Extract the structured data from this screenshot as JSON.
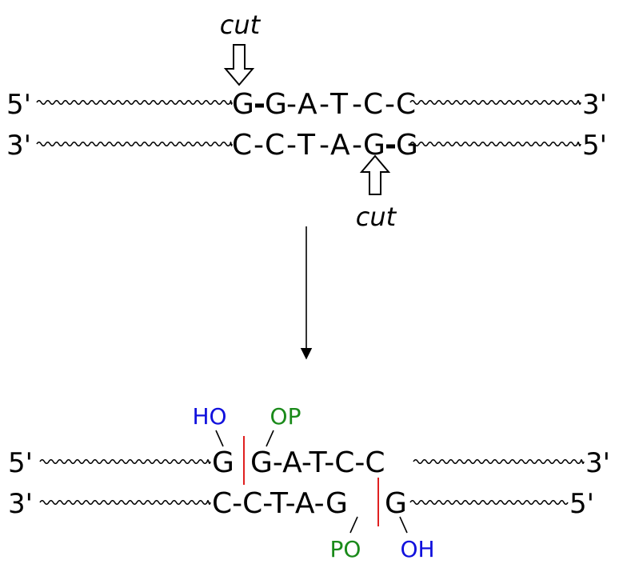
{
  "top": {
    "cut_label_top": "cut",
    "cut_label_bottom": "cut",
    "strand1": {
      "left_end": "5'",
      "right_end": "3'",
      "bases": [
        "G",
        "-",
        "G",
        "-",
        "A",
        "-",
        "T",
        "-",
        "C",
        "-",
        "C"
      ]
    },
    "strand2": {
      "left_end": "3'",
      "right_end": "5'",
      "bases": [
        "C",
        "-",
        "C",
        "-",
        "T",
        "-",
        "A",
        "-",
        "G",
        "-",
        "G"
      ]
    }
  },
  "bottom": {
    "strand1": {
      "left_end": "5'",
      "right_end": "3'",
      "left_base": "G",
      "right_bases": "G-A-T-C-C"
    },
    "strand2": {
      "left_end": "3'",
      "right_end": "5'",
      "left_bases": "C-C-T-A-G",
      "right_base": "G"
    },
    "groups": {
      "ho_top": "HO",
      "op_top": "OP",
      "po_bottom": "PO",
      "oh_bottom": "OH"
    }
  },
  "colors": {
    "bond_cut": "#e02020",
    "hydroxyl": "#1010dd",
    "phosphate": "#1a8a1a",
    "ink": "#000000"
  }
}
